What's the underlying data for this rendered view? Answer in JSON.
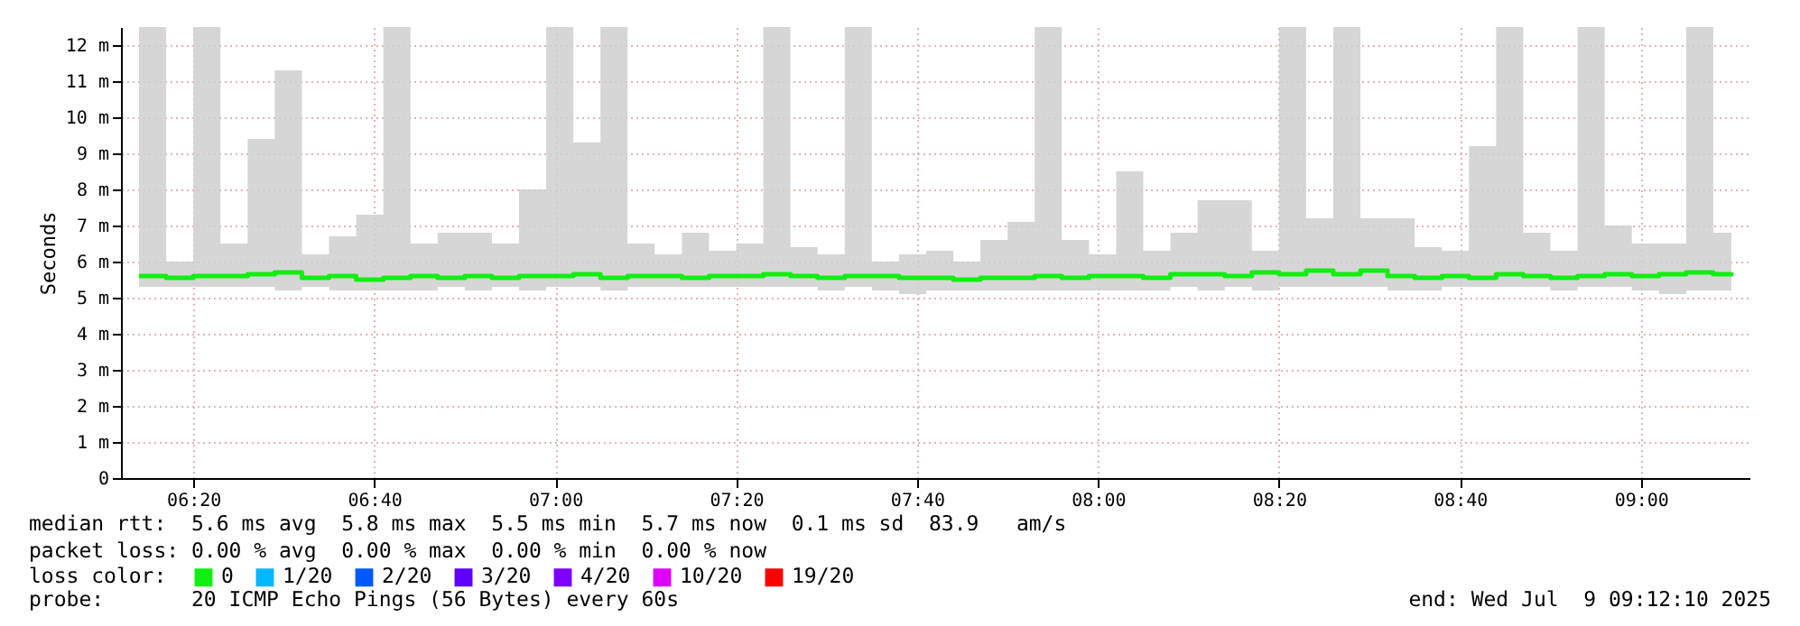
{
  "chart_data": {
    "type": "step",
    "ylabel": "Seconds",
    "legend_title": "loss color:",
    "legend": "bottom left",
    "grid": true,
    "xlim": [
      "2025-07-09T06:12",
      "2025-07-09T09:12"
    ],
    "xticks": [
      {
        "value": "2025-07-09T06:20",
        "label": "06:20"
      },
      {
        "value": "2025-07-09T06:40",
        "label": "06:40"
      },
      {
        "value": "2025-07-09T07:00",
        "label": "07:00"
      },
      {
        "value": "2025-07-09T07:20",
        "label": "07:20"
      },
      {
        "value": "2025-07-09T07:40",
        "label": "07:40"
      },
      {
        "value": "2025-07-09T08:00",
        "label": "08:00"
      },
      {
        "value": "2025-07-09T08:20",
        "label": "08:20"
      },
      {
        "value": "2025-07-09T08:40",
        "label": "08:40"
      },
      {
        "value": "2025-07-09T09:00",
        "label": "09:00"
      }
    ],
    "ylim": [
      0,
      12.5
    ],
    "yticks": [
      0,
      {
        "value": 1,
        "label": "1 m"
      },
      {
        "value": 2,
        "label": "2 m"
      },
      {
        "value": 3,
        "label": "3 m"
      },
      {
        "value": 4,
        "label": "4 m"
      },
      {
        "value": 5,
        "label": "5 m"
      },
      {
        "value": 6,
        "label": "6 m"
      },
      {
        "value": 7,
        "label": "7 m"
      },
      {
        "value": 8,
        "label": "8 m"
      },
      {
        "value": 9,
        "label": "9 m"
      },
      {
        "value": 10,
        "label": "10 m"
      },
      {
        "value": 11,
        "label": "11 m"
      },
      {
        "value": 12,
        "label": "12 m"
      }
    ],
    "x": [
      "2025-07-09T06:14",
      "2025-07-09T06:17",
      "2025-07-09T06:20",
      "2025-07-09T06:23",
      "2025-07-09T06:26",
      "2025-07-09T06:29",
      "2025-07-09T06:32",
      "2025-07-09T06:35",
      "2025-07-09T06:38",
      "2025-07-09T06:41",
      "2025-07-09T06:44",
      "2025-07-09T06:47",
      "2025-07-09T06:50",
      "2025-07-09T06:53",
      "2025-07-09T06:56",
      "2025-07-09T06:59",
      "2025-07-09T07:02",
      "2025-07-09T07:05",
      "2025-07-09T07:08",
      "2025-07-09T07:11",
      "2025-07-09T07:14",
      "2025-07-09T07:17",
      "2025-07-09T07:20",
      "2025-07-09T07:23",
      "2025-07-09T07:26",
      "2025-07-09T07:29",
      "2025-07-09T07:32",
      "2025-07-09T07:35",
      "2025-07-09T07:38",
      "2025-07-09T07:41",
      "2025-07-09T07:44",
      "2025-07-09T07:47",
      "2025-07-09T07:50",
      "2025-07-09T07:53",
      "2025-07-09T07:56",
      "2025-07-09T07:59",
      "2025-07-09T08:02",
      "2025-07-09T08:05",
      "2025-07-09T08:08",
      "2025-07-09T08:11",
      "2025-07-09T08:14",
      "2025-07-09T08:17",
      "2025-07-09T08:20",
      "2025-07-09T08:23",
      "2025-07-09T08:26",
      "2025-07-09T08:29",
      "2025-07-09T08:32",
      "2025-07-09T08:35",
      "2025-07-09T08:38",
      "2025-07-09T08:41",
      "2025-07-09T08:44",
      "2025-07-09T08:47",
      "2025-07-09T08:50",
      "2025-07-09T08:53",
      "2025-07-09T08:56",
      "2025-07-09T08:59",
      "2025-07-09T09:02",
      "2025-07-09T09:05",
      "2025-07-09T09:08",
      "2025-07-09T09:10"
    ],
    "series": [
      {
        "name": "0",
        "color": "#11ee11",
        "values": [
          5.6,
          5.55,
          5.6,
          5.6,
          5.65,
          5.7,
          5.55,
          5.6,
          5.5,
          5.55,
          5.6,
          5.55,
          5.6,
          5.55,
          5.6,
          5.6,
          5.65,
          5.55,
          5.6,
          5.6,
          5.55,
          5.6,
          5.6,
          5.65,
          5.6,
          5.55,
          5.6,
          5.6,
          5.55,
          5.55,
          5.5,
          5.55,
          5.55,
          5.6,
          5.55,
          5.6,
          5.6,
          5.55,
          5.65,
          5.65,
          5.6,
          5.7,
          5.65,
          5.75,
          5.65,
          5.75,
          5.6,
          5.55,
          5.6,
          5.55,
          5.65,
          5.6,
          5.55,
          5.6,
          5.65,
          5.6,
          5.65,
          5.7,
          5.65,
          5.7
        ],
        "lower": [
          5.3,
          5.3,
          5.3,
          5.3,
          5.3,
          5.2,
          5.3,
          5.2,
          5.2,
          5.2,
          5.2,
          5.3,
          5.2,
          5.3,
          5.2,
          5.3,
          5.3,
          5.2,
          5.3,
          5.3,
          5.3,
          5.3,
          5.3,
          5.3,
          5.3,
          5.2,
          5.3,
          5.2,
          5.1,
          5.2,
          5.2,
          5.2,
          5.2,
          5.2,
          5.2,
          5.2,
          5.2,
          5.2,
          5.3,
          5.2,
          5.3,
          5.2,
          5.3,
          5.3,
          5.3,
          5.3,
          5.2,
          5.2,
          5.3,
          5.3,
          5.3,
          5.3,
          5.2,
          5.3,
          5.3,
          5.2,
          5.1,
          5.2,
          5.2,
          5.3
        ],
        "upper": [
          12.5,
          6,
          12.5,
          6.5,
          9.4,
          11.3,
          6.2,
          6.7,
          7.3,
          12.5,
          6.5,
          6.8,
          6.8,
          6.5,
          8,
          12.5,
          9.3,
          12.5,
          6.5,
          6.2,
          6.8,
          6.3,
          6.5,
          12.5,
          6.4,
          6.2,
          12.5,
          6,
          6.2,
          6.3,
          6,
          6.6,
          7.1,
          12.5,
          6.6,
          6.2,
          8.5,
          6.3,
          6.8,
          7.7,
          7.7,
          6.3,
          12.5,
          7.2,
          12.5,
          7.2,
          7.2,
          6.4,
          6.3,
          9.2,
          12.5,
          6.8,
          6.3,
          12.5,
          7,
          6.5,
          6.5,
          12.5,
          6.8,
          6.5
        ]
      },
      {
        "name": "1/20",
        "color": "#00b8ff",
        "values": [
          null,
          null,
          null,
          null,
          null,
          null,
          null,
          null,
          null,
          null,
          null,
          null,
          null,
          null,
          null,
          null,
          null,
          null,
          null,
          null,
          null,
          null,
          null,
          null,
          null,
          null,
          null,
          null,
          null,
          null,
          null,
          null,
          null,
          null,
          null,
          null,
          null,
          null,
          null,
          null,
          null,
          null,
          null,
          null,
          null,
          null,
          null,
          null,
          null,
          null,
          null,
          null,
          null,
          null,
          null,
          null,
          null,
          null,
          null,
          null
        ]
      },
      {
        "name": "2/20",
        "color": "#0059ff",
        "values": [
          null,
          null,
          null,
          null,
          null,
          null,
          null,
          null,
          null,
          null,
          null,
          null,
          null,
          null,
          null,
          null,
          null,
          null,
          null,
          null,
          null,
          null,
          null,
          null,
          null,
          null,
          null,
          null,
          null,
          null,
          null,
          null,
          null,
          null,
          null,
          null,
          null,
          null,
          null,
          null,
          null,
          null,
          null,
          null,
          null,
          null,
          null,
          null,
          null,
          null,
          null,
          null,
          null,
          null,
          null,
          null,
          null,
          null,
          null,
          null
        ]
      },
      {
        "name": "3/20",
        "color": "#5e00ff",
        "values": [
          null,
          null,
          null,
          null,
          null,
          null,
          null,
          null,
          null,
          null,
          null,
          null,
          null,
          null,
          null,
          null,
          null,
          null,
          null,
          null,
          null,
          null,
          null,
          null,
          null,
          null,
          null,
          null,
          null,
          null,
          null,
          null,
          null,
          null,
          null,
          null,
          null,
          null,
          null,
          null,
          null,
          null,
          null,
          null,
          null,
          null,
          null,
          null,
          null,
          null,
          null,
          null,
          null,
          null,
          null,
          null,
          null,
          null,
          null,
          null
        ]
      },
      {
        "name": "4/20",
        "color": "#7e00ff",
        "values": [
          null,
          null,
          null,
          null,
          null,
          null,
          null,
          null,
          null,
          null,
          null,
          null,
          null,
          null,
          null,
          null,
          null,
          null,
          null,
          null,
          null,
          null,
          null,
          null,
          null,
          null,
          null,
          null,
          null,
          null,
          null,
          null,
          null,
          null,
          null,
          null,
          null,
          null,
          null,
          null,
          null,
          null,
          null,
          null,
          null,
          null,
          null,
          null,
          null,
          null,
          null,
          null,
          null,
          null,
          null,
          null,
          null,
          null,
          null,
          null
        ]
      },
      {
        "name": "10/20",
        "color": "#dd00ff",
        "values": [
          null,
          null,
          null,
          null,
          null,
          null,
          null,
          null,
          null,
          null,
          null,
          null,
          null,
          null,
          null,
          null,
          null,
          null,
          null,
          null,
          null,
          null,
          null,
          null,
          null,
          null,
          null,
          null,
          null,
          null,
          null,
          null,
          null,
          null,
          null,
          null,
          null,
          null,
          null,
          null,
          null,
          null,
          null,
          null,
          null,
          null,
          null,
          null,
          null,
          null,
          null,
          null,
          null,
          null,
          null,
          null,
          null,
          null,
          null,
          null
        ]
      },
      {
        "name": "19/20",
        "color": "#ff0000",
        "values": [
          null,
          null,
          null,
          null,
          null,
          null,
          null,
          null,
          null,
          null,
          null,
          null,
          null,
          null,
          null,
          null,
          null,
          null,
          null,
          null,
          null,
          null,
          null,
          null,
          null,
          null,
          null,
          null,
          null,
          null,
          null,
          null,
          null,
          null,
          null,
          null,
          null,
          null,
          null,
          null,
          null,
          null,
          null,
          null,
          null,
          null,
          null,
          null,
          null,
          null,
          null,
          null,
          null,
          null,
          null,
          null,
          null,
          null,
          null,
          null
        ]
      }
    ],
    "annotations": [
      "median rtt:  5.6 ms avg  5.8 ms max  5.5 ms min  5.7 ms now  0.1 ms sd  83.9   am/s",
      "packet loss: 0.00 % avg  0.00 % max  0.00 % min  0.00 % now",
      "probe:       20 ICMP Echo Pings (56 Bytes) every 60s",
      "end: Wed Jul  9 09:12:10 2025"
    ]
  }
}
